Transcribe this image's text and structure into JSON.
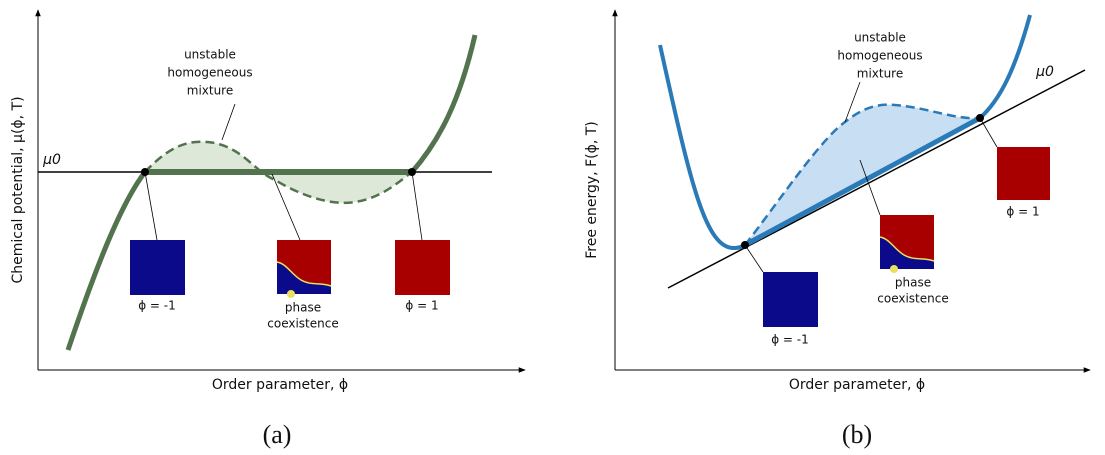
{
  "panel_a": {
    "unstable_label": [
      "unstable",
      "homogeneous",
      "mixture"
    ],
    "mu0": "μ0",
    "y_label": "Chemical potential,  μ(ϕ, T)",
    "x_label": "Order parameter,  ϕ",
    "left_state": "ϕ = -1",
    "middle_state": [
      "phase",
      "coexistence"
    ],
    "right_state": "ϕ = 1",
    "caption": "(a)"
  },
  "panel_b": {
    "unstable_label": [
      "unstable",
      "homogeneous",
      "mixture"
    ],
    "mu0": "μ0",
    "y_label": "Free energy,  F(ϕ, T)",
    "x_label": "Order parameter,  ϕ",
    "left_state": "ϕ = -1",
    "middle_state": [
      "phase",
      "coexistence"
    ],
    "right_state": "ϕ = 1",
    "caption": "(b)"
  }
}
